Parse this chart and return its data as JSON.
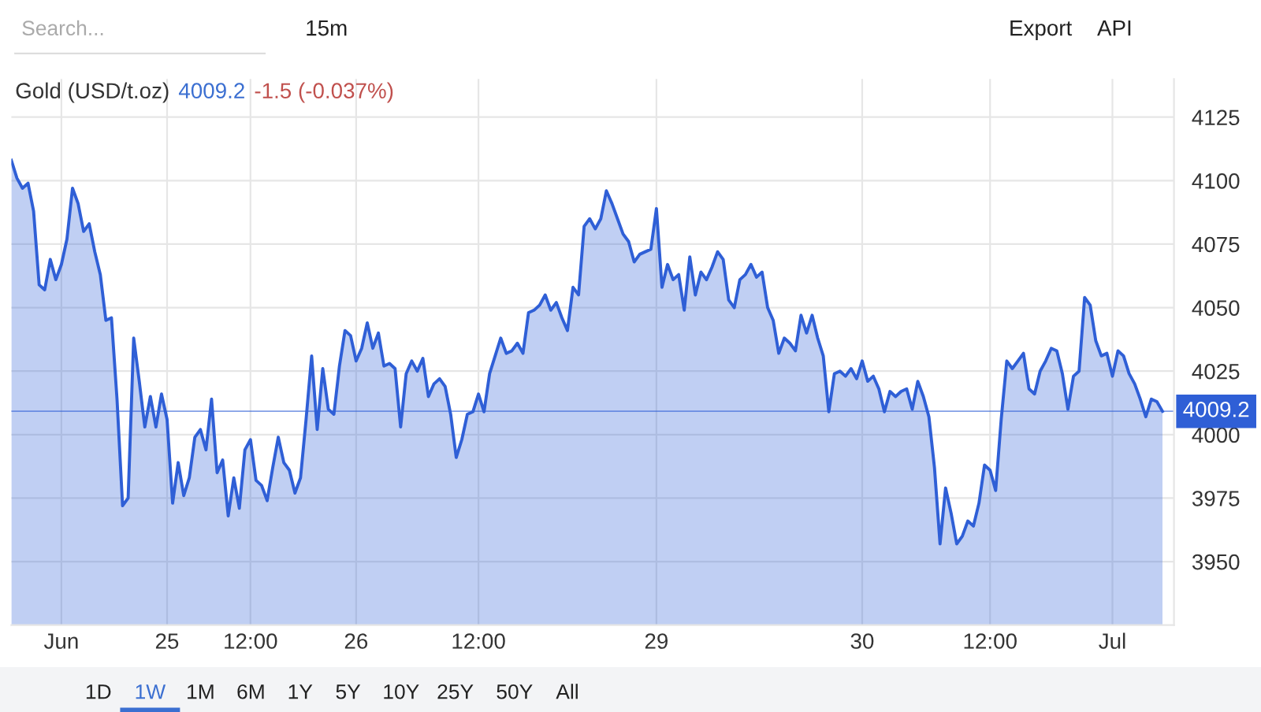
{
  "chart_data": {
    "type": "area",
    "title": "Gold (USD/t.oz)",
    "annotations": [
      "4009.2",
      "-1.5 (-0.037%)",
      "Search...",
      "15m",
      "Export",
      "API",
      "1D",
      "1W",
      "1M",
      "6M",
      "1Y",
      "5Y",
      "10Y",
      "25Y",
      "50Y",
      "All"
    ],
    "categories": [
      null,
      null,
      null,
      null,
      null,
      null,
      null,
      null,
      null,
      "Jun",
      null,
      null,
      null,
      null,
      null,
      null,
      null,
      null,
      null,
      null,
      null,
      null,
      null,
      null,
      null,
      null,
      null,
      null,
      "25",
      null,
      null,
      null,
      null,
      null,
      null,
      null,
      null,
      null,
      null,
      null,
      null,
      null,
      null,
      "12:00",
      null,
      null,
      null,
      null,
      null,
      null,
      null,
      null,
      null,
      null,
      null,
      null,
      null,
      null,
      null,
      null,
      null,
      null,
      "26",
      null,
      null,
      null,
      null,
      null,
      null,
      null,
      null,
      null,
      null,
      null,
      null,
      null,
      null,
      null,
      null,
      null,
      null,
      null,
      null,
      null,
      "12:00",
      null,
      null,
      null,
      null,
      null,
      null,
      null,
      null,
      null,
      null,
      null,
      null,
      null,
      null,
      null,
      null,
      null,
      null,
      null,
      null,
      null,
      null,
      null,
      null,
      null,
      null,
      null,
      null,
      null,
      null,
      null,
      "29",
      null,
      null,
      null,
      null,
      null,
      null,
      null,
      null,
      null,
      null,
      null,
      null,
      null,
      null,
      null,
      null,
      null,
      null,
      null,
      null,
      null,
      null,
      null,
      null,
      null,
      null,
      null,
      null,
      null,
      null,
      null,
      null,
      null,
      null,
      null,
      null,
      "30",
      null,
      null,
      null,
      null,
      null,
      null,
      null,
      null,
      null,
      null,
      null,
      null,
      null,
      null,
      null,
      null,
      null,
      null,
      null,
      null,
      null,
      null,
      "12:00",
      null,
      null,
      null,
      null,
      null,
      null,
      null,
      null,
      null,
      null,
      null,
      null,
      null,
      null,
      null,
      null,
      null,
      null,
      null,
      null,
      null,
      "Jul",
      null,
      null,
      null,
      null,
      null,
      null,
      null,
      null,
      null
    ],
    "series": [
      {
        "color": "#2f5fd6",
        "values": [
          4108,
          4101,
          4097,
          4099,
          4088,
          4059,
          4057,
          4069,
          4061,
          4067,
          4077,
          4097,
          4091,
          4080,
          4083,
          4072,
          4063,
          4045,
          4046,
          4014,
          3972,
          3975,
          4038,
          4021,
          4003,
          4015,
          4003,
          4016,
          4006,
          3973,
          3989,
          3976,
          3983,
          3999,
          4002,
          3994,
          4014,
          3985,
          3990,
          3968,
          3983,
          3971,
          3994,
          3998,
          3982,
          3980,
          3974,
          3987,
          3999,
          3989,
          3986,
          3977,
          3983,
          4006,
          4031,
          4002,
          4026,
          4010,
          4008,
          4027,
          4041,
          4039,
          4029,
          4034,
          4044,
          4034,
          4040,
          4027,
          4028,
          4026,
          4003,
          4024,
          4029,
          4025,
          4030,
          4015,
          4020,
          4022,
          4019,
          4008,
          3991,
          3998,
          4008,
          4009,
          4016,
          4009,
          4024,
          4031,
          4038,
          4032,
          4033,
          4036,
          4032,
          4048,
          4049,
          4051,
          4055,
          4049,
          4052,
          4046,
          4041,
          4058,
          4055,
          4082,
          4085,
          4081,
          4085,
          4096,
          4091,
          4085,
          4079,
          4076,
          4068,
          4071,
          4072,
          4073,
          4089,
          4058,
          4067,
          4061,
          4063,
          4049,
          4070,
          4055,
          4064,
          4061,
          4066,
          4072,
          4069,
          4053,
          4050,
          4061,
          4063,
          4067,
          4062,
          4064,
          4050,
          4045,
          4032,
          4038,
          4036,
          4033,
          4047,
          4040,
          4047,
          4038,
          4031,
          4009,
          4024,
          4025,
          4023,
          4026,
          4022,
          4029,
          4021,
          4023,
          4018,
          4009,
          4017,
          4015,
          4017,
          4018,
          4010,
          4021,
          4015,
          4007,
          3987,
          3957,
          3979,
          3969,
          3957,
          3960,
          3966,
          3964,
          3973,
          3988,
          3986,
          3978,
          4006,
          4029,
          4026,
          4029,
          4032,
          4018,
          4016,
          4025,
          4029,
          4034,
          4033,
          4024,
          4010,
          4023,
          4025,
          4054,
          4051,
          4037,
          4031,
          4032,
          4023,
          4033,
          4031,
          4024,
          4020,
          4014,
          4007,
          4014,
          4013,
          4009.2
        ]
      }
    ],
    "ylim": [
      3925,
      4140
    ],
    "yticks": [
      3950,
      3975,
      4000,
      4025,
      4050,
      4075,
      4100,
      4125
    ],
    "ref_lines": [
      {
        "axis": "y",
        "value": 4009.2,
        "label": "4009.2",
        "color": "#2f5fd6"
      }
    ],
    "grid": true,
    "legend": false,
    "marker": "none",
    "line_style": "solid"
  }
}
